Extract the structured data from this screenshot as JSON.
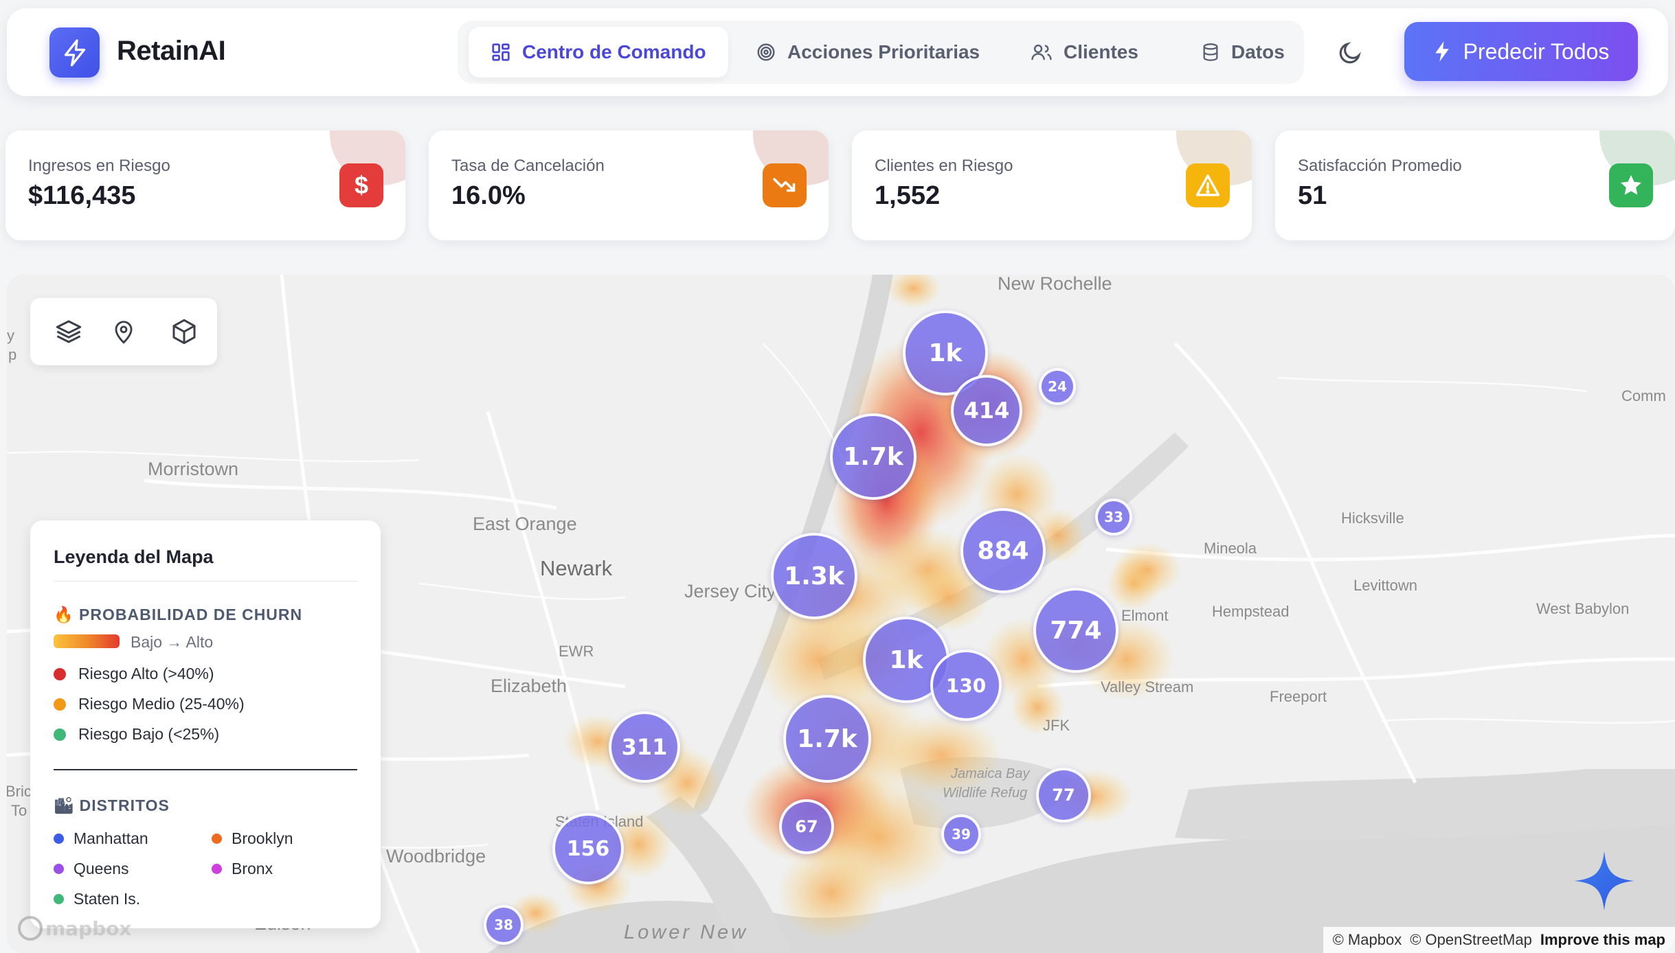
{
  "header": {
    "brand": "RetainAI",
    "nav": [
      {
        "label": "Centro de Comando",
        "icon": "grid-icon",
        "active": true
      },
      {
        "label": "Acciones Prioritarias",
        "icon": "target-icon",
        "active": false
      },
      {
        "label": "Clientes",
        "icon": "users-icon",
        "active": false
      },
      {
        "label": "Datos",
        "icon": "database-icon",
        "active": false
      }
    ],
    "theme_icon": "moon-icon",
    "predict_label": "Predecir Todos"
  },
  "kpis": [
    {
      "label": "Ingresos en Riesgo",
      "value": "$116,435",
      "icon": "dollar-icon",
      "color": "#e43b3b"
    },
    {
      "label": "Tasa de Cancelación",
      "value": "16.0%",
      "icon": "trending-down-icon",
      "color": "#ec7a12"
    },
    {
      "label": "Clientes en Riesgo",
      "value": "1,552",
      "icon": "warning-icon",
      "color": "#f5b50d"
    },
    {
      "label": "Satisfacción Promedio",
      "value": "51",
      "icon": "star-icon",
      "color": "#33b35a"
    }
  ],
  "map": {
    "places": {
      "new_rochelle": "New Rochelle",
      "morristown": "Morristown",
      "east_orange": "East Orange",
      "newark": "Newark",
      "jersey_city": "Jersey City",
      "ewr": "EWR",
      "elizabeth": "Elizabeth",
      "staten_island": "Staten Island",
      "woodbridge": "Woodbridge",
      "edison": "Edison",
      "lower_new": "Lower New",
      "mineola": "Mineola",
      "hicksville": "Hicksville",
      "levittown": "Levittown",
      "hempstead": "Hempstead",
      "elmont": "Elmont",
      "valley_stream": "Valley Stream",
      "freeport": "Freeport",
      "west_babylon": "West Babylon",
      "jfk": "JFK",
      "jamaica_bay": "Jamaica Bay",
      "wildlife_refuge": "Wildlife Refug",
      "comm": "Comm",
      "left_a": "y",
      "left_b": "p",
      "left_c": "Bric",
      "left_d": "To"
    },
    "clusters": [
      "1k",
      "414",
      "24",
      "1.7k",
      "33",
      "884",
      "1.3k",
      "774",
      "1k",
      "130",
      "1.7k",
      "311",
      "67",
      "39",
      "77",
      "156",
      "38"
    ],
    "tools": [
      "layers-icon",
      "map-pin-icon",
      "cube-icon"
    ],
    "legend": {
      "title": "Leyenda del Mapa",
      "churn_section": "🔥 PROBABILIDAD DE CHURN",
      "gradient_label": "Bajo → Alto",
      "risk": [
        {
          "label": "Riesgo Alto (>40%)",
          "color": "#d92d2d"
        },
        {
          "label": "Riesgo Medio (25-40%)",
          "color": "#f29a16"
        },
        {
          "label": "Riesgo Bajo (<25%)",
          "color": "#3fb87a"
        }
      ],
      "districts_section": "🏙 DISTRITOS",
      "districts": [
        {
          "label": "Manhattan",
          "color": "#3b5ce6"
        },
        {
          "label": "Brooklyn",
          "color": "#ee6a1f"
        },
        {
          "label": "Queens",
          "color": "#9a4fe6"
        },
        {
          "label": "Bronx",
          "color": "#cf3fe0"
        },
        {
          "label": "Staten Is.",
          "color": "#3fb87a"
        }
      ]
    },
    "attribution": {
      "mapbox": "© Mapbox",
      "osm": "© OpenStreetMap",
      "improve": "Improve this map"
    },
    "logo_text": "mapbox",
    "assistant_icon": "sparkle-icon"
  }
}
